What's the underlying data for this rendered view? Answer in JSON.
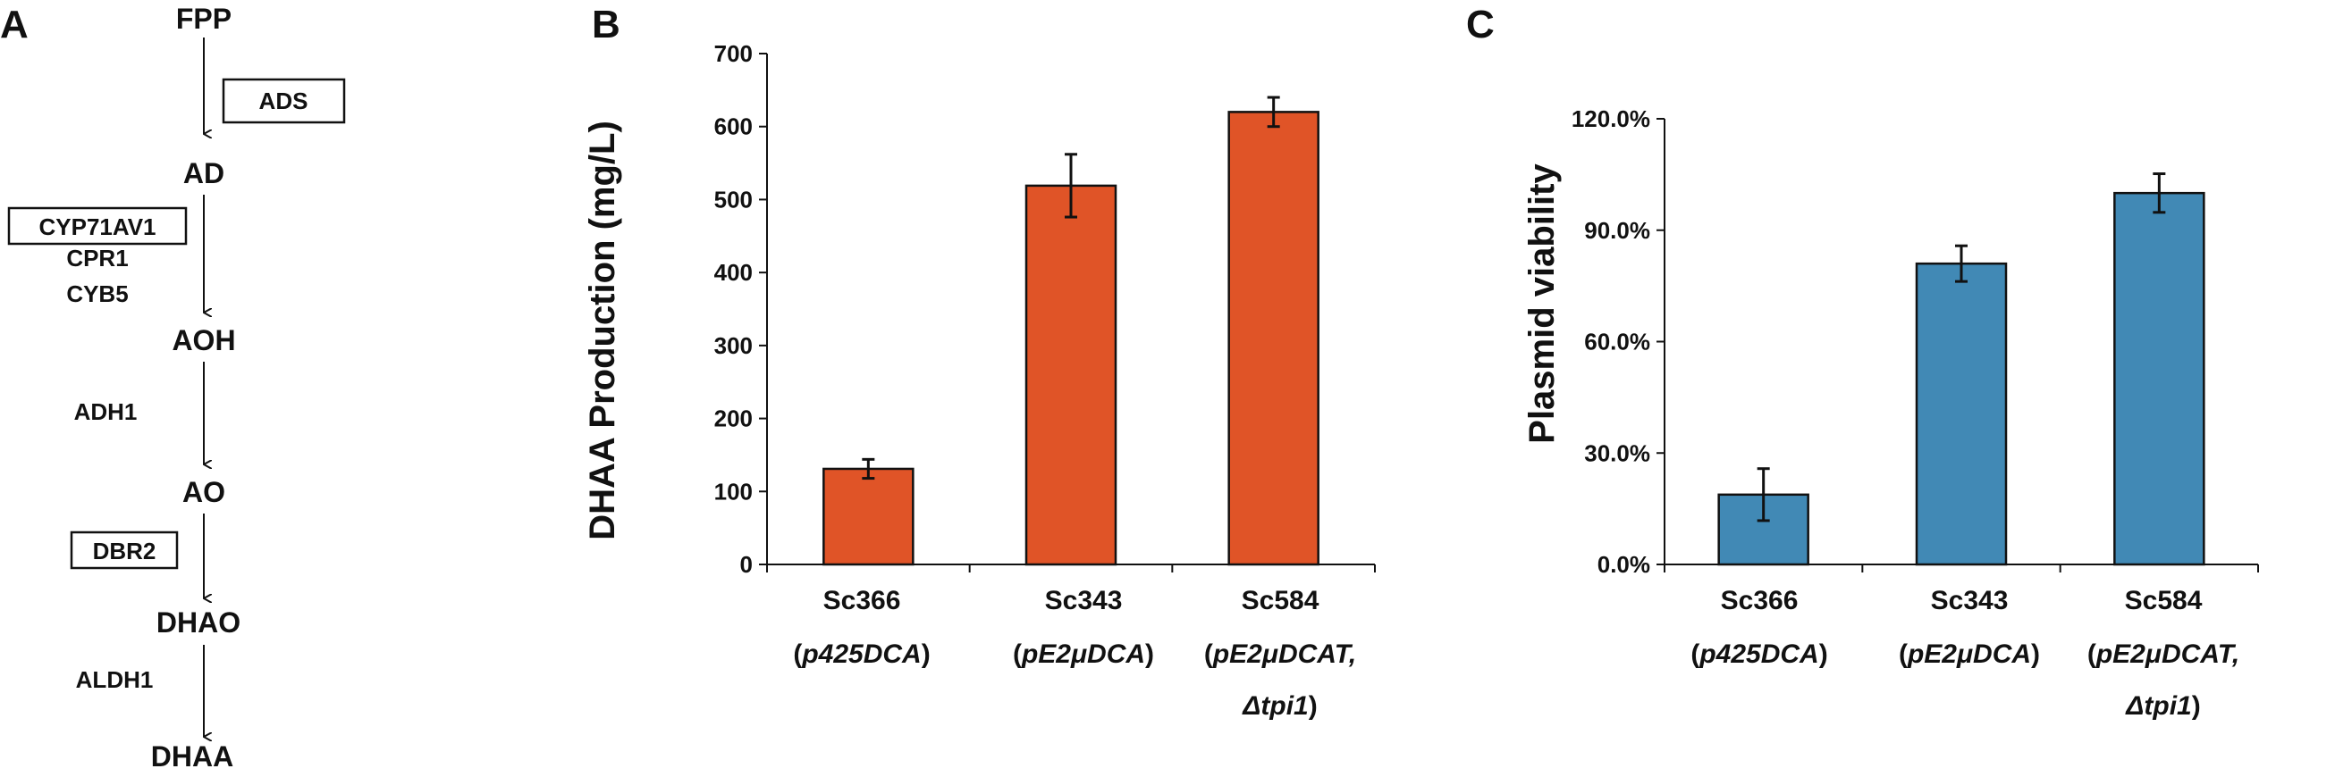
{
  "panels": {
    "a": {
      "letter": "A",
      "pathway": {
        "fpp": "FPP",
        "ad": "AD",
        "aoh": "AOH",
        "ao": "AO",
        "dhao": "DHAO",
        "dhaa": "DHAA",
        "ads": "ADS",
        "cyp71av1": "CYP71AV1",
        "cpr1": "CPR1",
        "cyb5": "CYB5",
        "adh1": "ADH1",
        "dbr2": "DBR2",
        "aldh1": "ALDH1"
      },
      "colors": {
        "product": "#E05A2B"
      }
    },
    "b": {
      "letter": "B"
    },
    "c": {
      "letter": "C"
    }
  },
  "strains": {
    "s1": {
      "name": "Sc366",
      "open": "(",
      "plasmid": "p425DCA",
      "close": ")"
    },
    "s2": {
      "name": "Sc343",
      "open": "(",
      "plasmid": "pE2μDCA",
      "close": ")"
    },
    "s3": {
      "name": "Sc584",
      "open": "(",
      "plasmid": "pE2μDCAT,",
      "gene": "Δtpi1",
      "close": ")"
    }
  },
  "chart_data": [
    {
      "type": "bar",
      "categories": [
        "Sc366 (p425DCA)",
        "Sc343 (pE2μDCA)",
        "Sc584 (pE2μDCAT, Δtpi1)"
      ],
      "values": [
        131,
        519,
        620
      ],
      "errors": [
        13,
        43,
        20
      ],
      "ylabel": "DHAA Production (mg/L)",
      "ylim": [
        0,
        700
      ],
      "yticks": [
        "0",
        "100",
        "200",
        "300",
        "400",
        "500",
        "600",
        "700"
      ],
      "color": "#E05427",
      "grid": false
    },
    {
      "type": "bar",
      "categories": [
        "Sc366 (p425DCA)",
        "Sc343 (pE2μDCA)",
        "Sc584 (pE2μDCAT, Δtpi1)"
      ],
      "values": [
        18.8,
        81.0,
        100.0
      ],
      "errors": [
        7.0,
        4.8,
        5.2
      ],
      "ylabel": "Plasmid viability",
      "ylim": [
        0,
        120
      ],
      "yticks": [
        "0.0%",
        "30.0%",
        "60.0%",
        "90.0%",
        "120.0%"
      ],
      "color": "#4189B5",
      "grid": false
    }
  ]
}
